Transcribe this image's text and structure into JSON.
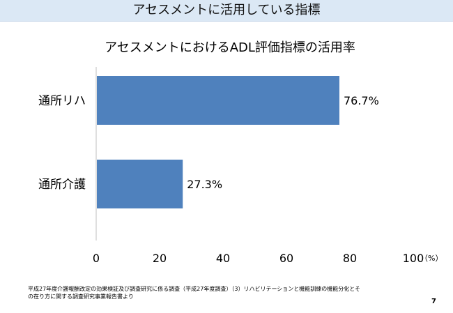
{
  "header": {
    "title": "アセスメントに活用している指標"
  },
  "chart_data": {
    "type": "bar",
    "orientation": "horizontal",
    "title": "アセスメントにおけるADL評価指標の活用率",
    "categories": [
      "通所リハ",
      "通所介護"
    ],
    "values": [
      76.7,
      27.3
    ],
    "data_labels": [
      "76.7%",
      "27.3%"
    ],
    "xlim": [
      0,
      100
    ],
    "xticks": [
      0,
      20,
      40,
      60,
      80,
      100
    ],
    "x_unit": "（%）",
    "grid": false,
    "legend": "none",
    "bar_color": "#4f81bd",
    "axis_color": "#bfbfbf"
  },
  "footnote": {
    "line1": "平成27年度介護報酬改定の効果検証及び調査研究に係る調査（平成27年度調査）（3）リハビリテーションと機能訓練の機能分化とそ",
    "line2": "の在り方に関する調査研究事業報告書より"
  },
  "page": {
    "number": "7"
  }
}
